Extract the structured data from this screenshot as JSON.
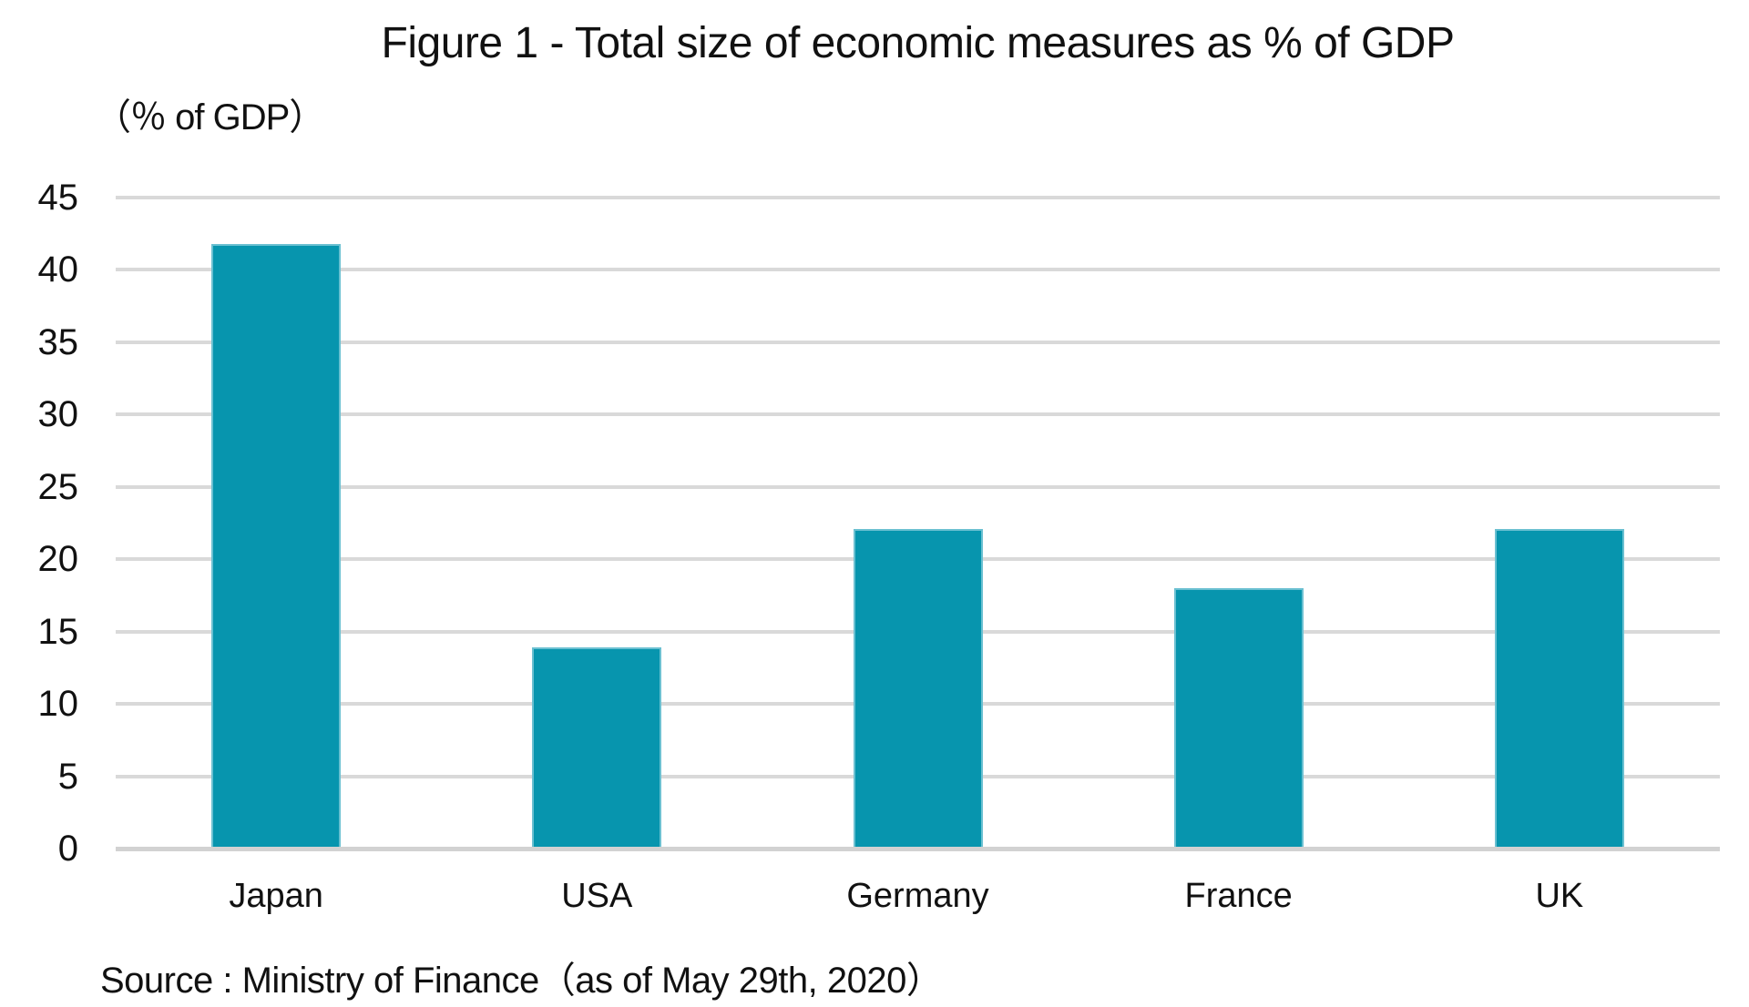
{
  "title": "Figure 1 - Total size of economic measures as % of GDP",
  "unit_label": "（％ of GDP）",
  "source": "Source : Ministry of Finance（as of May 29th, 2020）",
  "colors": {
    "bar": "#0795ae",
    "gridline": "#d9d9d9",
    "baseline": "#d2d2d2",
    "text": "#111111"
  },
  "chart_data": {
    "type": "bar",
    "title": "Figure 1 - Total size of economic measures as % of GDP",
    "categories": [
      "Japan",
      "USA",
      "Germany",
      "France",
      "UK"
    ],
    "values": [
      41.8,
      13.9,
      22.1,
      18.0,
      22.1
    ],
    "xlabel": "",
    "ylabel": "（％ of GDP）",
    "ylim": [
      0,
      45
    ],
    "yticks": [
      0,
      5,
      10,
      15,
      20,
      25,
      30,
      35,
      40,
      45
    ],
    "grid": true,
    "legend_position": "none",
    "source": "Source : Ministry of Finance（as of May 29th, 2020）"
  }
}
